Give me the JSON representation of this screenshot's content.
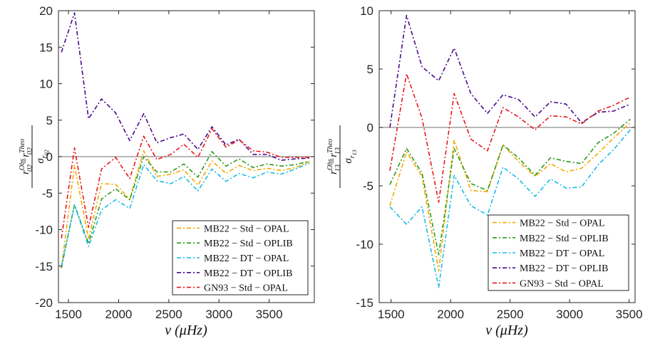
{
  "chart_data": [
    {
      "type": "line",
      "xlabel": "ν (μHz)",
      "ylabel": {
        "numerator": "r02Obs−r02Theo",
        "denominator": "σr02",
        "num_a": "r",
        "num_a_sup": "Obs",
        "num_a_sub": "02",
        "minus": "−",
        "num_b": "r",
        "num_b_sup": "Theo",
        "num_b_sub": "02",
        "den": "σ",
        "den_sub": "r",
        "den_subsub": "02"
      },
      "xlim": [
        1400,
        3950
      ],
      "ylim": [
        -20,
        20
      ],
      "xticks": [
        1500,
        2000,
        2500,
        3000,
        3500
      ],
      "xtick_labels": [
        "1500",
        "2000",
        "2500",
        "3000",
        "3500"
      ],
      "yticks": [
        -20,
        -15,
        -10,
        -5,
        0,
        5,
        10,
        15,
        20
      ],
      "ytick_labels": [
        "-20",
        "-15",
        "-10",
        "-5",
        "0",
        "5",
        "10",
        "15",
        "20"
      ],
      "legend_position": "bottom-right",
      "reference_line": 0,
      "x": [
        1430,
        1560,
        1700,
        1830,
        1970,
        2110,
        2250,
        2380,
        2520,
        2650,
        2790,
        2930,
        3070,
        3200,
        3340,
        3480,
        3620,
        3760,
        3900
      ],
      "series": [
        {
          "name": "MB22 − Std − OPAL",
          "color": "#f5a800",
          "values": [
            -15.3,
            -1.2,
            -11.3,
            -3.7,
            -3.8,
            -5.8,
            0.8,
            -2.7,
            -2.4,
            -1.8,
            -3.9,
            -0.6,
            -2.3,
            -1.2,
            -1.9,
            -1.6,
            -1.9,
            -1.5,
            -0.7
          ]
        },
        {
          "name": "MB22 − Std − OPLIB",
          "color": "#2a9b1a",
          "values": [
            -15.2,
            -6.6,
            -11.9,
            -5.8,
            -4.4,
            -5.9,
            0.0,
            -2.1,
            -2.1,
            -1.0,
            -2.8,
            0.7,
            -1.3,
            -0.3,
            -1.5,
            -1.0,
            -1.3,
            -1.1,
            -0.6
          ]
        },
        {
          "name": "MB22 − DT − OPAL",
          "color": "#18bde8",
          "values": [
            -15.0,
            -6.6,
            -12.3,
            -7.3,
            -5.9,
            -7.1,
            -1.1,
            -3.3,
            -3.7,
            -2.7,
            -4.7,
            -1.7,
            -3.4,
            -2.3,
            -2.9,
            -2.1,
            -2.4,
            -1.7,
            -0.9
          ]
        },
        {
          "name": "MB22 − DT − OPLIB",
          "color": "#4a0a8c",
          "values": [
            14.3,
            19.7,
            5.2,
            7.9,
            6.0,
            2.2,
            5.9,
            1.9,
            2.6,
            3.1,
            1.0,
            4.1,
            1.6,
            2.4,
            0.3,
            0.3,
            -0.5,
            -0.3,
            -0.2
          ]
        },
        {
          "name": "GN93 − Std − OPAL",
          "color": "#e8161a",
          "values": [
            -11.2,
            1.2,
            -9.7,
            -1.7,
            -0.1,
            -3.0,
            2.8,
            -0.4,
            0.3,
            1.7,
            -0.1,
            3.8,
            1.3,
            2.3,
            0.8,
            0.6,
            -0.1,
            -0.1,
            -0.1
          ]
        }
      ]
    },
    {
      "type": "line",
      "xlabel": "ν (μHz)",
      "ylabel": {
        "numerator": "r13Obs−r13Theo",
        "denominator": "σr13",
        "num_a": "r",
        "num_a_sup": "Obs",
        "num_a_sub": "13",
        "minus": "−",
        "num_b": "r",
        "num_b_sup": "Theo",
        "num_b_sub": "13",
        "den": "σ",
        "den_sub": "r",
        "den_subsub": "13"
      },
      "xlim": [
        1400,
        3550
      ],
      "ylim": [
        -15,
        10
      ],
      "xticks": [
        1500,
        2000,
        2500,
        3000,
        3500
      ],
      "xtick_labels": [
        "1500",
        "2000",
        "2500",
        "3000",
        "3500"
      ],
      "yticks": [
        -15,
        -10,
        -5,
        0,
        5,
        10
      ],
      "ytick_labels": [
        "-15",
        "-10",
        "-5",
        "0",
        "5",
        "10"
      ],
      "legend_position": "bottom-right",
      "reference_line": 0,
      "x": [
        1490,
        1630,
        1760,
        1900,
        2030,
        2170,
        2310,
        2440,
        2570,
        2710,
        2840,
        2970,
        3100,
        3240,
        3370,
        3510
      ],
      "series": [
        {
          "name": "MB22 − Std − OPAL",
          "color": "#f5a800",
          "values": [
            -6.7,
            -2.1,
            -4.2,
            -12.3,
            -1.1,
            -5.4,
            -5.5,
            -1.5,
            -2.9,
            -4.2,
            -3.1,
            -3.8,
            -3.5,
            -2.2,
            -0.9,
            0.4
          ]
        },
        {
          "name": "MB22 − Std − OPLIB",
          "color": "#2a9b1a",
          "values": [
            -4.9,
            -1.8,
            -3.9,
            -10.9,
            -1.8,
            -4.8,
            -5.4,
            -1.5,
            -2.6,
            -4.1,
            -2.6,
            -2.9,
            -3.1,
            -1.3,
            -0.5,
            0.7
          ]
        },
        {
          "name": "MB22 − DT − OPAL",
          "color": "#18bde8",
          "values": [
            -6.8,
            -8.3,
            -6.8,
            -13.7,
            -4.1,
            -6.7,
            -7.5,
            -3.4,
            -4.4,
            -5.9,
            -4.4,
            -5.2,
            -5.1,
            -3.2,
            -1.9,
            -0.2
          ]
        },
        {
          "name": "MB22 − DT − OPLIB",
          "color": "#4a0a8c",
          "values": [
            0.0,
            9.6,
            5.2,
            4.0,
            6.8,
            2.9,
            1.2,
            2.8,
            2.4,
            0.9,
            2.2,
            2.0,
            0.4,
            1.3,
            1.4,
            2.0
          ]
        },
        {
          "name": "GN93 − Std − OPAL",
          "color": "#e8161a",
          "values": [
            -3.7,
            4.6,
            0.8,
            -6.4,
            2.9,
            -1.0,
            -2.0,
            1.7,
            0.9,
            -0.2,
            1.0,
            0.9,
            0.3,
            1.4,
            1.9,
            2.6
          ]
        }
      ]
    }
  ]
}
